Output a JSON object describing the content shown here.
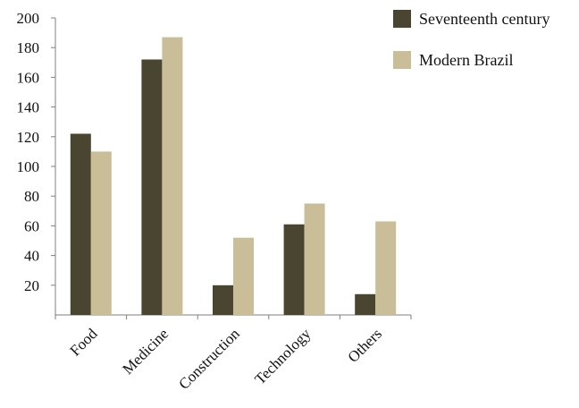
{
  "chart_data": {
    "type": "bar",
    "categories": [
      "Food",
      "Medicine",
      "Construction",
      "Technology",
      "Others"
    ],
    "series": [
      {
        "name": "Seventeenth century",
        "values": [
          122,
          172,
          20,
          61,
          14
        ],
        "color": "#4a4530"
      },
      {
        "name": "Modern Brazil",
        "values": [
          110,
          187,
          52,
          75,
          63
        ],
        "color": "#c9be98"
      }
    ],
    "ylim": [
      0,
      200
    ],
    "yticks": [
      20,
      40,
      60,
      80,
      100,
      120,
      140,
      160,
      180,
      200
    ],
    "grid": false,
    "legend_position": "top-right"
  }
}
